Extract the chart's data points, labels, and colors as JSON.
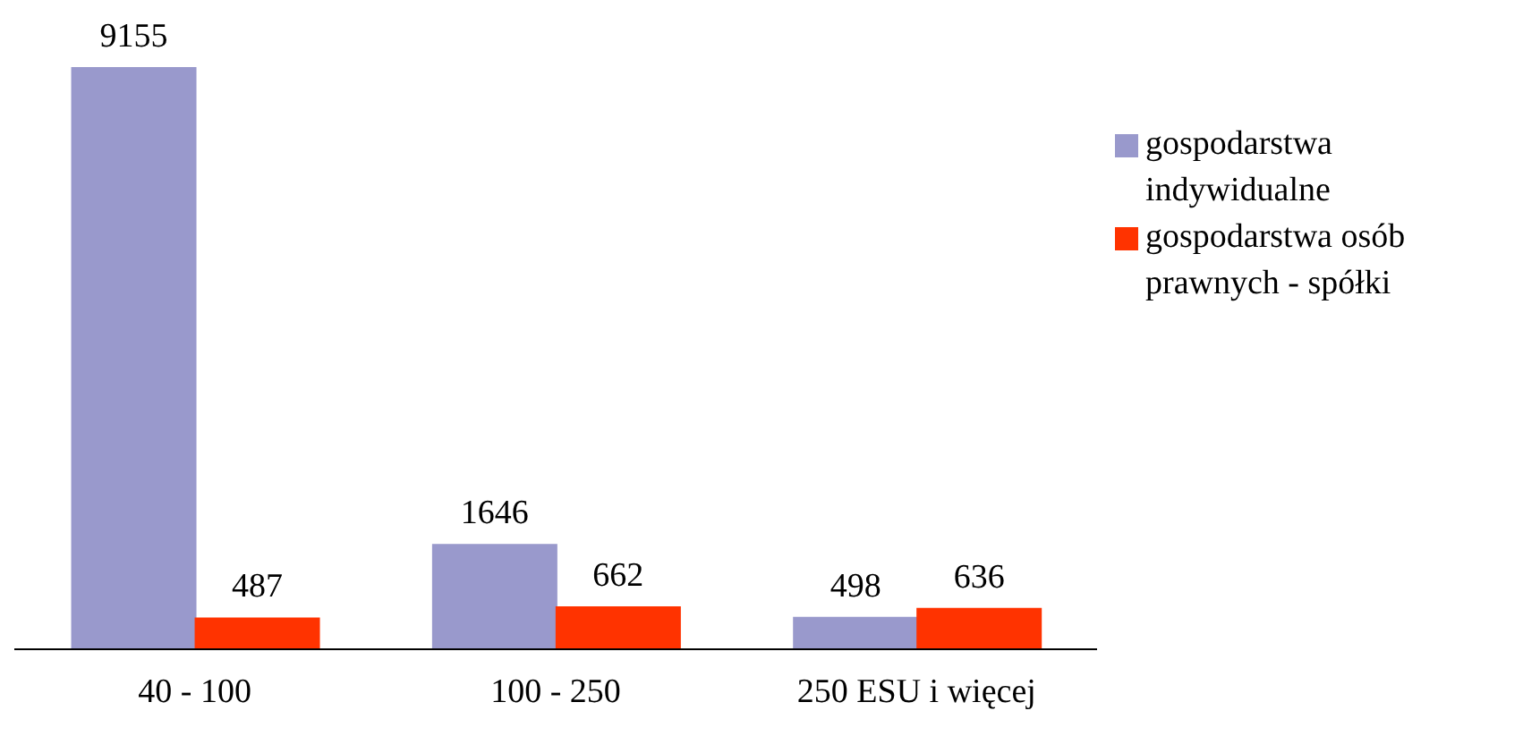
{
  "chart_data": {
    "type": "bar",
    "categories": [
      "40 - 100",
      "100 - 250",
      "250 ESU i więcej"
    ],
    "series": [
      {
        "name": "gospodarstwa indywidualne",
        "color": "#9999cc",
        "values": [
          9155,
          1646,
          498
        ]
      },
      {
        "name": "gospodarstwa osób prawnych - spółki",
        "color": "#ff3300",
        "values": [
          487,
          662,
          636
        ]
      }
    ],
    "data_labels": true,
    "legend": "top right"
  }
}
